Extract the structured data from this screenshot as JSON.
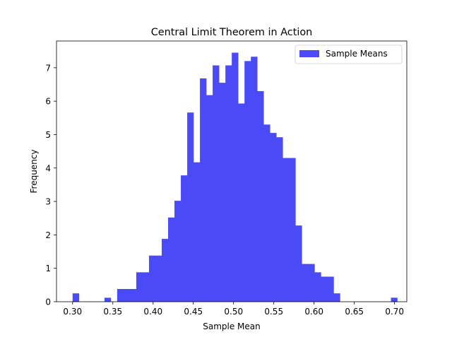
{
  "chart_data": {
    "type": "bar",
    "title": "Central Limit Theorem in Action",
    "xlabel": "Sample Mean",
    "ylabel": "Frequency",
    "xlim": [
      0.28,
      0.7152
    ],
    "ylim": [
      0,
      7.8
    ],
    "xticks": [
      0.3,
      0.35,
      0.4,
      0.45,
      0.5,
      0.55,
      0.6,
      0.65,
      0.7
    ],
    "xtick_labels": [
      "0.30",
      "0.35",
      "0.40",
      "0.45",
      "0.50",
      "0.55",
      "0.60",
      "0.65",
      "0.70"
    ],
    "yticks": [
      0,
      1,
      2,
      3,
      4,
      5,
      6,
      7
    ],
    "ytick_labels": [
      "0",
      "1",
      "2",
      "3",
      "4",
      "5",
      "6",
      "7"
    ],
    "grid": false,
    "legend": {
      "position": "top-right",
      "entries": [
        "Sample Means"
      ]
    },
    "series": [
      {
        "name": "Sample Means",
        "color": "#4a4af7",
        "bin_start": 0.3,
        "bin_width": 0.00791,
        "values": [
          0.25,
          0,
          0,
          0,
          0,
          0.12,
          0,
          0.38,
          0.38,
          0.38,
          0.88,
          0.88,
          1.38,
          1.38,
          1.88,
          2.52,
          3.02,
          3.78,
          5.66,
          4.17,
          6.68,
          6.18,
          7.07,
          6.55,
          7.07,
          7.45,
          5.93,
          7.2,
          7.33,
          6.3,
          5.3,
          5.05,
          4.92,
          4.3,
          4.3,
          2.28,
          1.13,
          1.13,
          0.88,
          0.75,
          0.75,
          0.25,
          0,
          0,
          0,
          0,
          0,
          0,
          0,
          0,
          0.12
        ]
      }
    ]
  }
}
